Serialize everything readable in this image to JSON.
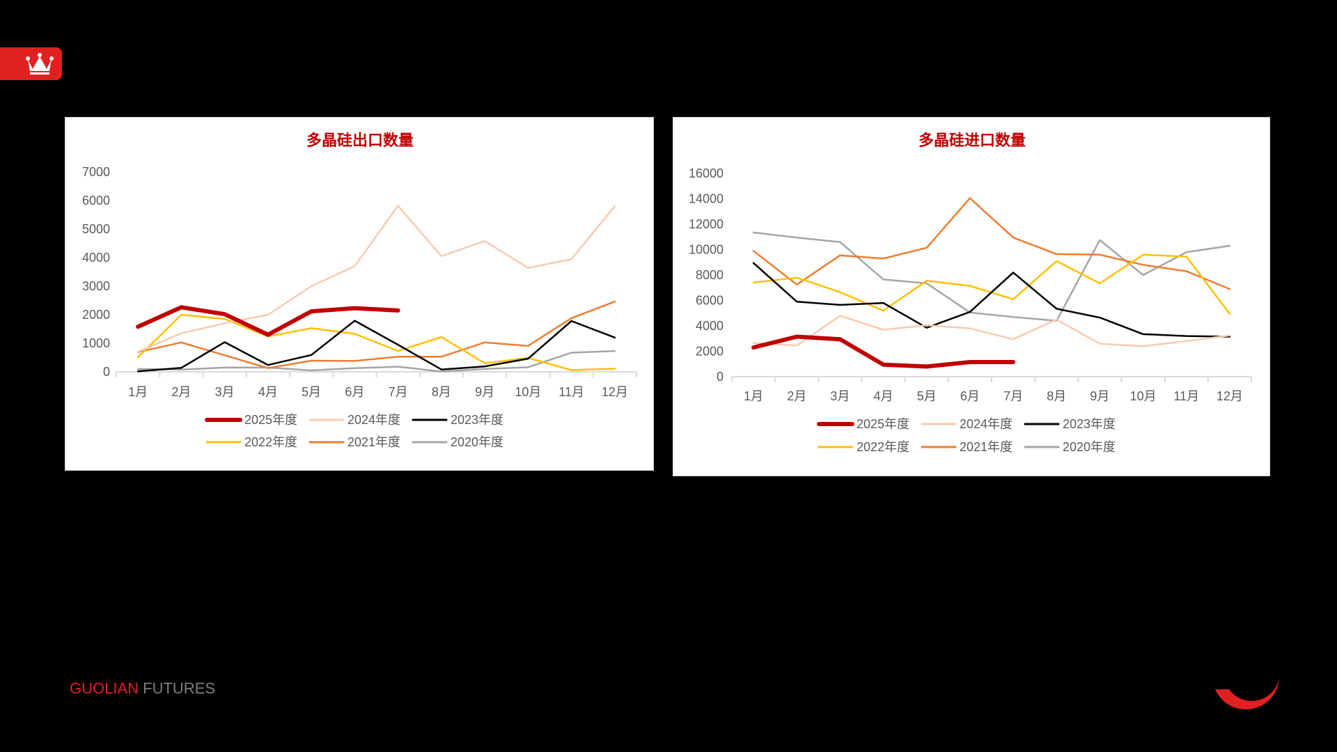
{
  "header": {
    "crown_icon": "crown-icon",
    "brand_color": "#e02121"
  },
  "footer": {
    "brand_primary": "GUOLIAN",
    "brand_secondary": "FUTURES",
    "logo_icon": "crescent-logo-icon"
  },
  "legend_labels": [
    "2025年度",
    "2024年度",
    "2023年度",
    "2022年度",
    "2021年度",
    "2020年度"
  ],
  "series_colors": {
    "2025年度": "#c00000",
    "2024年度": "#f8cbad",
    "2023年度": "#000000",
    "2022年度": "#ffc000",
    "2021年度": "#ed7d31",
    "2020年度": "#a5a5a5"
  },
  "chart_data": [
    {
      "type": "line",
      "title": "多晶硅出口数量",
      "xlabel": "",
      "ylabel": "",
      "categories": [
        "1月",
        "2月",
        "3月",
        "4月",
        "5月",
        "6月",
        "7月",
        "8月",
        "9月",
        "10月",
        "11月",
        "12月"
      ],
      "ylim": [
        0,
        7000
      ],
      "yticks": [
        0,
        1000,
        2000,
        3000,
        4000,
        5000,
        6000,
        7000
      ],
      "grid": false,
      "legend_position": "bottom",
      "series": [
        {
          "name": "2025年度",
          "values": [
            1580,
            2260,
            2020,
            1300,
            2120,
            2230,
            2150,
            null,
            null,
            null,
            null,
            null
          ]
        },
        {
          "name": "2024年度",
          "values": [
            700,
            1350,
            1700,
            2000,
            3000,
            3700,
            5820,
            4050,
            4580,
            3640,
            3950,
            5800
          ]
        },
        {
          "name": "2023年度",
          "values": [
            20,
            140,
            1040,
            240,
            590,
            1790,
            950,
            80,
            190,
            460,
            1780,
            1200
          ]
        },
        {
          "name": "2022年度",
          "values": [
            510,
            2000,
            1850,
            1240,
            1530,
            1330,
            730,
            1220,
            300,
            490,
            60,
            110
          ]
        },
        {
          "name": "2021年度",
          "values": [
            690,
            1030,
            580,
            130,
            390,
            380,
            530,
            530,
            1030,
            910,
            1880,
            2460
          ]
        },
        {
          "name": "2020年度",
          "values": [
            100,
            80,
            150,
            150,
            50,
            130,
            180,
            10,
            100,
            160,
            670,
            730
          ]
        }
      ]
    },
    {
      "type": "line",
      "title": "多晶硅进口数量",
      "xlabel": "",
      "ylabel": "",
      "categories": [
        "1月",
        "2月",
        "3月",
        "4月",
        "5月",
        "6月",
        "7月",
        "8月",
        "9月",
        "10月",
        "11月",
        "12月"
      ],
      "ylim": [
        0,
        16000
      ],
      "yticks": [
        0,
        2000,
        4000,
        6000,
        8000,
        10000,
        12000,
        14000,
        16000
      ],
      "grid": false,
      "legend_position": "bottom",
      "series": [
        {
          "name": "2025年度",
          "values": [
            2300,
            3150,
            2950,
            950,
            800,
            1150,
            1150,
            null,
            null,
            null,
            null,
            null
          ]
        },
        {
          "name": "2024年度",
          "values": [
            2650,
            2450,
            4800,
            3700,
            4050,
            3800,
            2950,
            4500,
            2600,
            2400,
            2800,
            3250
          ]
        },
        {
          "name": "2023年度",
          "values": [
            8950,
            5900,
            5650,
            5800,
            3850,
            5100,
            8200,
            5350,
            4650,
            3350,
            3200,
            3150
          ]
        },
        {
          "name": "2022年度",
          "values": [
            7400,
            7800,
            6650,
            5200,
            7550,
            7150,
            6100,
            9100,
            7350,
            9600,
            9450,
            4950
          ]
        },
        {
          "name": "2021年度",
          "values": [
            9900,
            7250,
            9550,
            9300,
            10150,
            14050,
            10950,
            9650,
            9600,
            8800,
            8300,
            6900
          ]
        },
        {
          "name": "2020年度",
          "values": [
            11350,
            10950,
            10600,
            7650,
            7350,
            5050,
            4700,
            4400,
            10750,
            8000,
            9800,
            10300
          ]
        }
      ]
    }
  ]
}
